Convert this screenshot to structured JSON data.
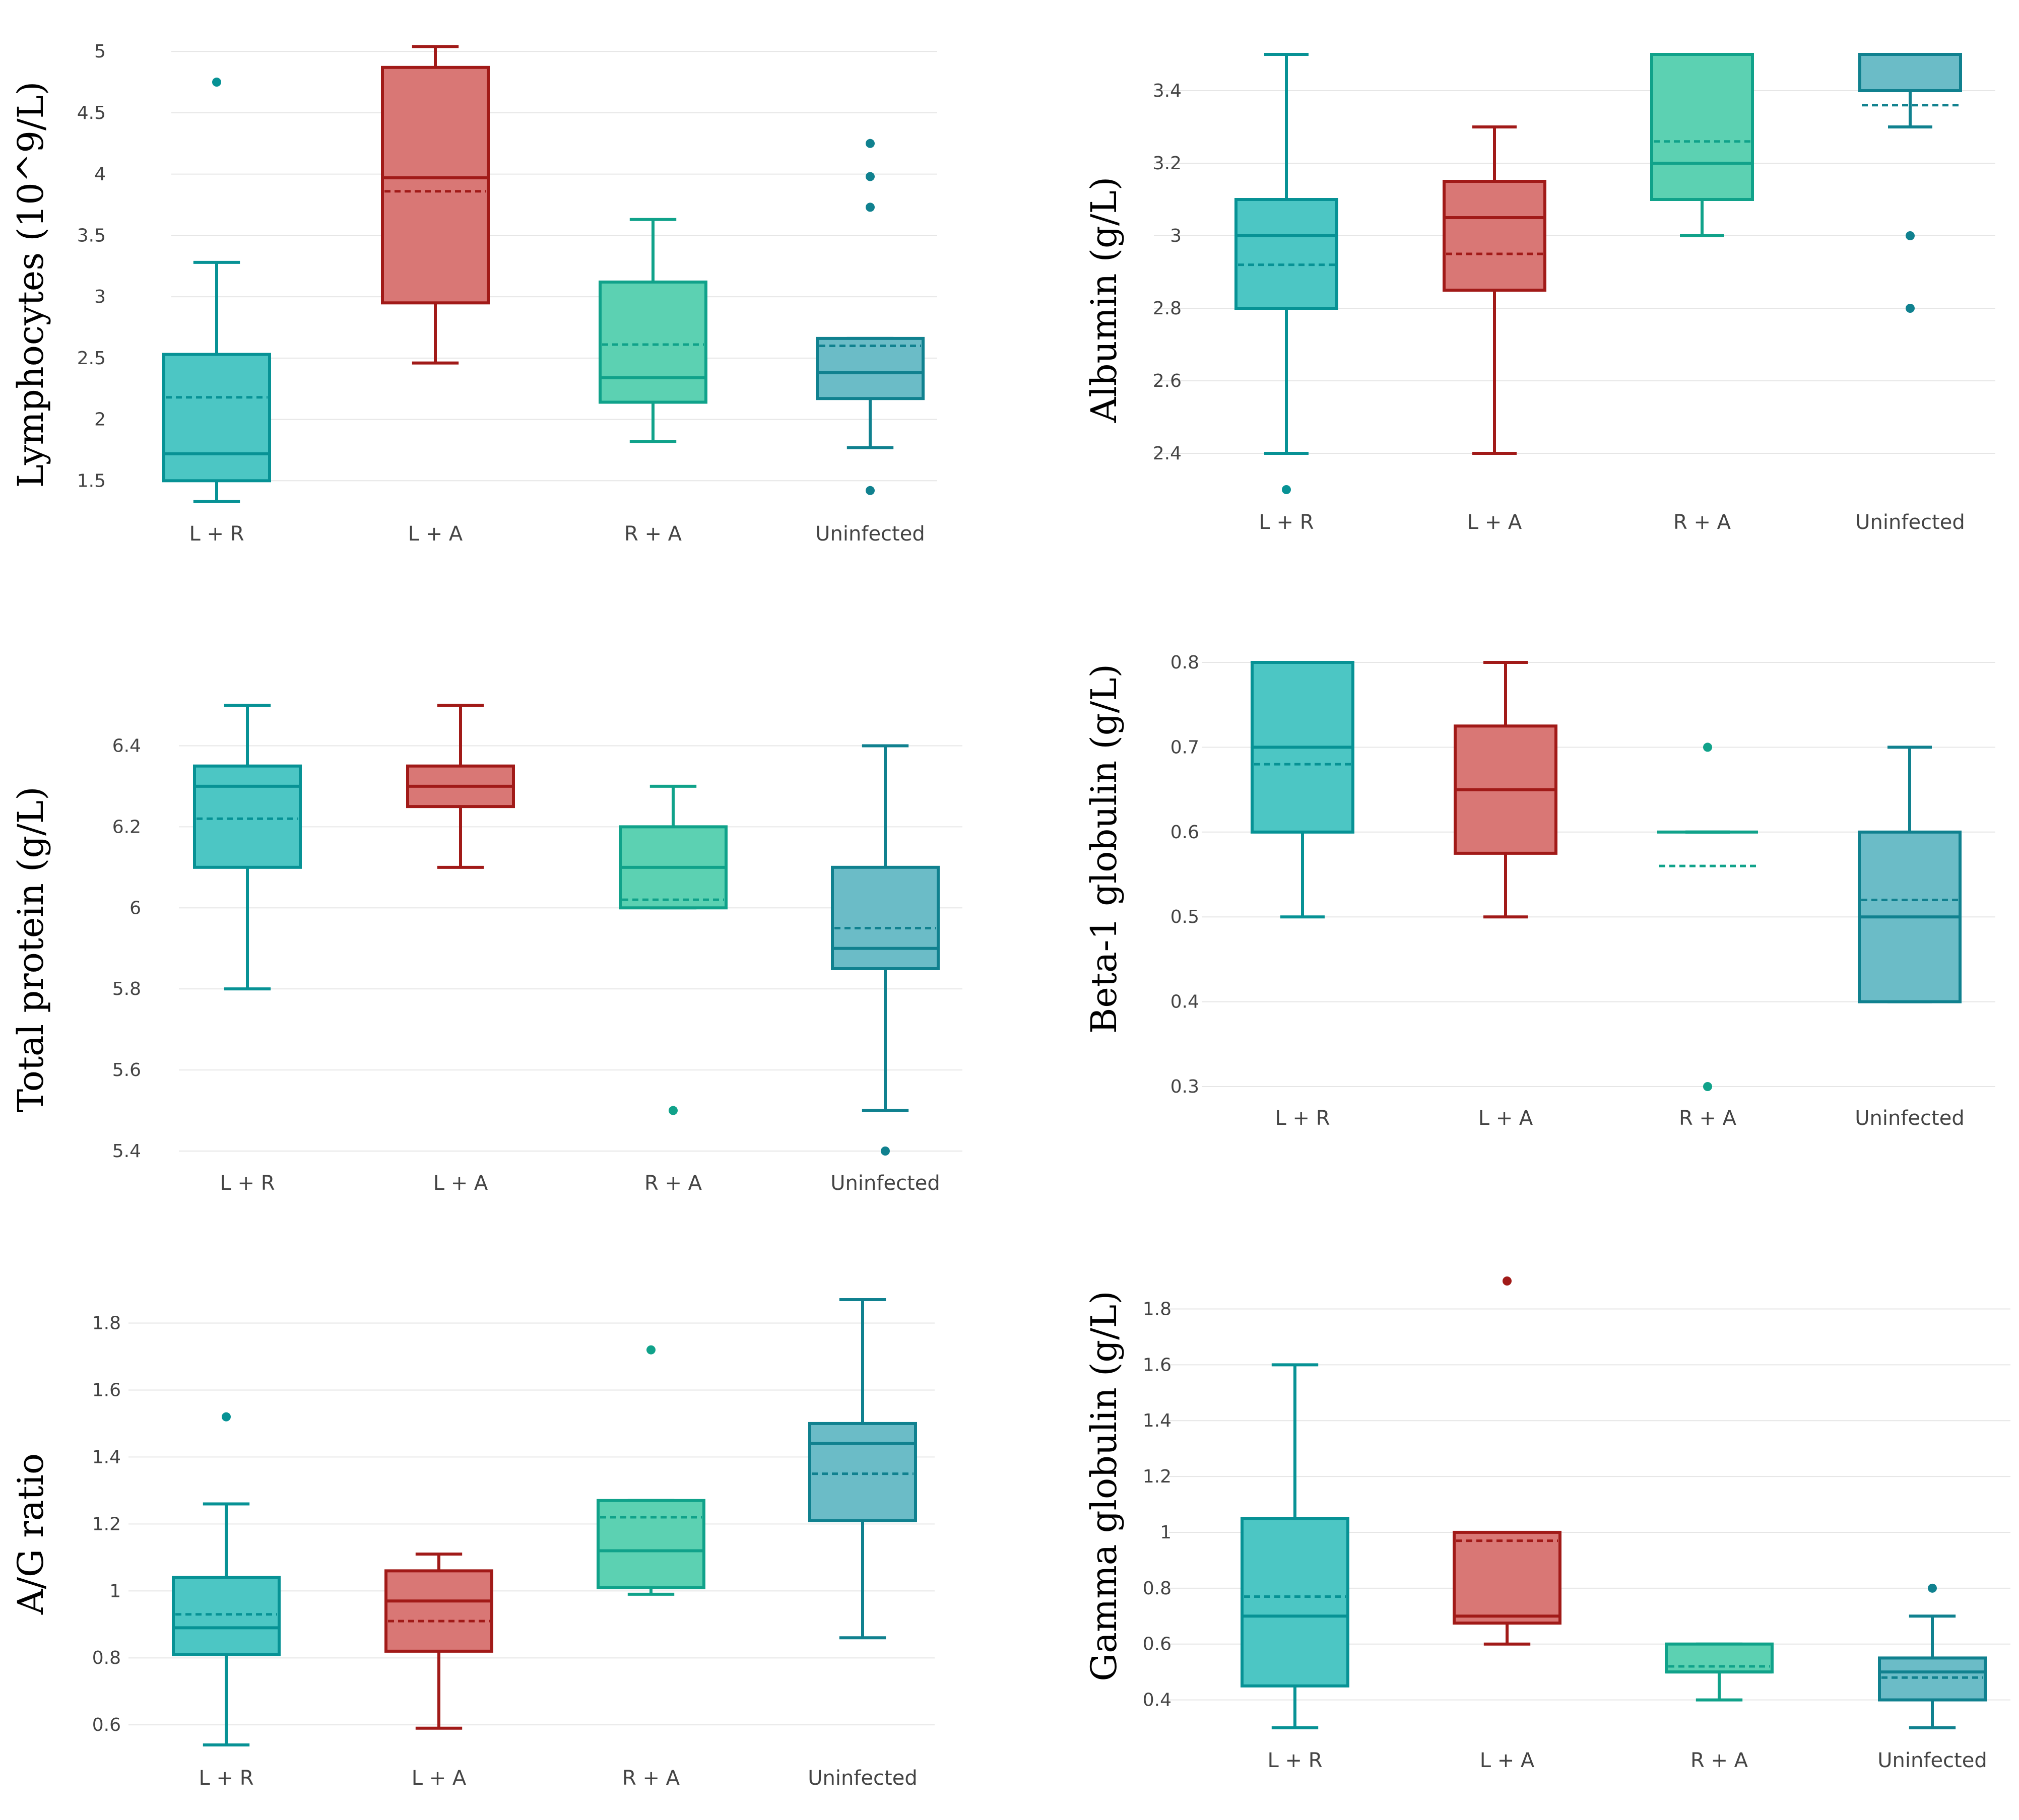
{
  "colors": {
    "L + R": {
      "stroke": "#079295",
      "fill": "#4cc6c4"
    },
    "L + A": {
      "stroke": "#a11a18",
      "fill": "#d97775"
    },
    "R + A": {
      "stroke": "#10a28a",
      "fill": "#5cd1b2"
    },
    "Uninfected": {
      "stroke": "#10818f",
      "fill": "#6bbcc7"
    }
  },
  "chart_data": [
    {
      "type": "box",
      "title": "",
      "xlabel": "",
      "ylabel": "Lymphocytes (10^9/L)",
      "categories": [
        "L + R",
        "L + A",
        "R + A",
        "Uninfected"
      ],
      "ylim": [
        1.3,
        5.05
      ],
      "yticks": [
        "1.5",
        "2",
        "2.5",
        "3",
        "3.5",
        "4",
        "4.5",
        "5"
      ],
      "boxes": [
        {
          "min": 1.33,
          "q1": 1.5,
          "median": 1.72,
          "mean": 2.18,
          "q3": 2.53,
          "max": 3.28,
          "outliers": [
            4.75
          ]
        },
        {
          "min": 2.46,
          "q1": 2.95,
          "median": 3.97,
          "mean": 3.86,
          "q3": 4.87,
          "max": 5.04,
          "outliers": []
        },
        {
          "min": 1.82,
          "q1": 2.14,
          "median": 2.34,
          "mean": 2.61,
          "q3": 3.12,
          "max": 3.63,
          "outliers": []
        },
        {
          "min": 1.77,
          "q1": 2.17,
          "median": 2.38,
          "mean": 2.6,
          "q3": 2.66,
          "max": 2.66,
          "outliers": [
            1.42,
            3.73,
            3.98,
            4.25
          ]
        }
      ]
    },
    {
      "type": "box",
      "title": "",
      "xlabel": "",
      "ylabel": "Albumin (g/L)",
      "categories": [
        "L + R",
        "L + A",
        "R + A",
        "Uninfected"
      ],
      "ylim": [
        2.3,
        3.5
      ],
      "yticks": [
        "2.4",
        "2.6",
        "2.8",
        "3",
        "3.2",
        "3.4"
      ],
      "boxes": [
        {
          "min": 2.4,
          "q1": 2.8,
          "median": 3.0,
          "mean": 2.92,
          "q3": 3.1,
          "max": 3.5,
          "outliers": [
            2.3
          ]
        },
        {
          "min": 2.4,
          "q1": 2.85,
          "median": 3.05,
          "mean": 2.95,
          "q3": 3.15,
          "max": 3.3,
          "outliers": []
        },
        {
          "min": 3.0,
          "q1": 3.1,
          "median": 3.2,
          "mean": 3.26,
          "q3": 3.5,
          "max": 3.5,
          "outliers": []
        },
        {
          "min": 3.3,
          "q1": 3.4,
          "median": 3.5,
          "mean": 3.36,
          "q3": 3.5,
          "max": 3.5,
          "outliers": [
            2.8,
            3.0
          ]
        }
      ]
    },
    {
      "type": "box",
      "title": "",
      "xlabel": "",
      "ylabel": "Total protein (g/L)",
      "categories": [
        "L + R",
        "L + A",
        "R + A",
        "Uninfected"
      ],
      "ylim": [
        5.4,
        6.5
      ],
      "yticks": [
        "5.4",
        "5.6",
        "5.8",
        "6",
        "6.2",
        "6.4"
      ],
      "boxes": [
        {
          "min": 5.8,
          "q1": 6.1,
          "median": 6.3,
          "mean": 6.22,
          "q3": 6.35,
          "max": 6.5,
          "outliers": []
        },
        {
          "min": 6.1,
          "q1": 6.25,
          "median": 6.3,
          "mean": 6.3,
          "q3": 6.35,
          "max": 6.5,
          "outliers": []
        },
        {
          "min": 6.0,
          "q1": 6.0,
          "median": 6.1,
          "mean": 6.02,
          "q3": 6.2,
          "max": 6.3,
          "outliers": [
            5.5
          ]
        },
        {
          "min": 5.5,
          "q1": 5.85,
          "median": 5.9,
          "mean": 5.95,
          "q3": 6.1,
          "max": 6.4,
          "outliers": [
            5.4
          ]
        }
      ]
    },
    {
      "type": "box",
      "title": "",
      "xlabel": "",
      "ylabel": "Beta-1 globulin (g/L)",
      "categories": [
        "L + R",
        "L + A",
        "R + A",
        "Uninfected"
      ],
      "ylim": [
        0.3,
        0.8
      ],
      "yticks": [
        "0.3",
        "0.4",
        "0.5",
        "0.6",
        "0.7",
        "0.8"
      ],
      "boxes": [
        {
          "min": 0.5,
          "q1": 0.6,
          "median": 0.7,
          "mean": 0.68,
          "q3": 0.8,
          "max": 0.8,
          "outliers": []
        },
        {
          "min": 0.5,
          "q1": 0.575,
          "median": 0.65,
          "mean": 0.65,
          "q3": 0.725,
          "max": 0.8,
          "outliers": []
        },
        {
          "min": 0.6,
          "q1": 0.6,
          "median": 0.6,
          "mean": 0.56,
          "q3": 0.6,
          "max": 0.6,
          "outliers": [
            0.3,
            0.7
          ]
        },
        {
          "min": 0.4,
          "q1": 0.4,
          "median": 0.5,
          "mean": 0.52,
          "q3": 0.6,
          "max": 0.7,
          "outliers": []
        }
      ]
    },
    {
      "type": "box",
      "title": "",
      "xlabel": "",
      "ylabel": "A/G ratio",
      "categories": [
        "L + R",
        "L + A",
        "R + A",
        "Uninfected"
      ],
      "ylim": [
        0.54,
        1.87
      ],
      "yticks": [
        "0.6",
        "0.8",
        "1",
        "1.2",
        "1.4",
        "1.6",
        "1.8"
      ],
      "boxes": [
        {
          "min": 0.54,
          "q1": 0.81,
          "median": 0.89,
          "mean": 0.93,
          "q3": 1.04,
          "max": 1.26,
          "outliers": [
            1.52
          ]
        },
        {
          "min": 0.59,
          "q1": 0.82,
          "median": 0.97,
          "mean": 0.91,
          "q3": 1.06,
          "max": 1.11,
          "outliers": []
        },
        {
          "min": 0.99,
          "q1": 1.01,
          "median": 1.12,
          "mean": 1.22,
          "q3": 1.27,
          "max": 1.27,
          "outliers": [
            1.72
          ]
        },
        {
          "min": 0.86,
          "q1": 1.21,
          "median": 1.44,
          "mean": 1.35,
          "q3": 1.5,
          "max": 1.87,
          "outliers": []
        }
      ]
    },
    {
      "type": "box",
      "title": "",
      "xlabel": "",
      "ylabel": "Gamma globulin (g/L)",
      "categories": [
        "L + R",
        "L + A",
        "R + A",
        "Uninfected"
      ],
      "ylim": [
        0.3,
        1.9
      ],
      "yticks": [
        "0.4",
        "0.6",
        "0.8",
        "1",
        "1.2",
        "1.4",
        "1.6",
        "1.8"
      ],
      "boxes": [
        {
          "min": 0.3,
          "q1": 0.45,
          "median": 0.7,
          "mean": 0.77,
          "q3": 1.05,
          "max": 1.6,
          "outliers": []
        },
        {
          "min": 0.6,
          "q1": 0.675,
          "median": 0.7,
          "mean": 0.97,
          "q3": 1.0,
          "max": 1.0,
          "outliers": [
            1.9
          ]
        },
        {
          "min": 0.4,
          "q1": 0.5,
          "median": 0.5,
          "mean": 0.52,
          "q3": 0.6,
          "max": 0.6,
          "outliers": []
        },
        {
          "min": 0.3,
          "q1": 0.4,
          "median": 0.5,
          "mean": 0.48,
          "q3": 0.55,
          "max": 0.7,
          "outliers": [
            0.8
          ]
        }
      ]
    }
  ]
}
